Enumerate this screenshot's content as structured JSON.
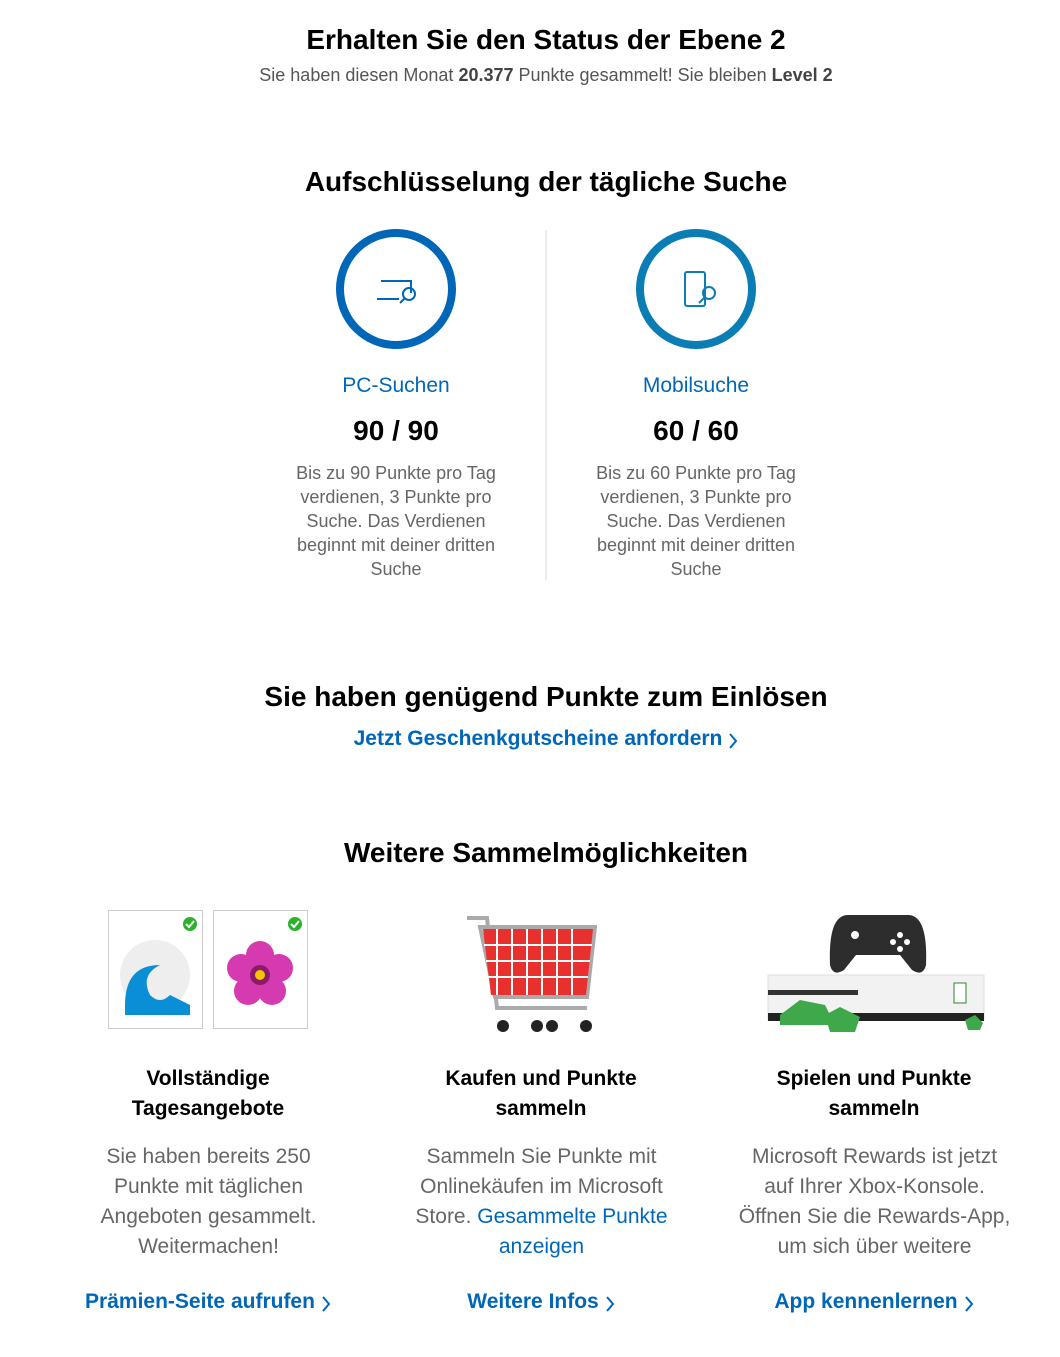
{
  "status": {
    "title": "Erhalten Sie den Status der Ebene 2",
    "subtitle": [
      "Sie haben diesen Monat ",
      "20.377",
      " Punkte gesammelt! Sie bleiben ",
      "Level 2"
    ]
  },
  "breakdown": {
    "title": "Aufschlüsselung der tägliche Suche",
    "cards": [
      {
        "label": "PC-Suchen",
        "progress": "90 / 90",
        "description": "Bis zu 90 Punkte pro Tag verdienen, 3 Punkte pro Suche. Das Verdienen beginnt mit deiner dritten Suche"
      },
      {
        "label": "Mobilsuche",
        "progress": "60 / 60",
        "description": "Bis zu 60 Punkte pro Tag verdienen, 3 Punkte pro Suche. Das Verdienen beginnt mit deiner dritten Suche"
      }
    ]
  },
  "redeem": {
    "title": "Sie haben genügend Punkte zum Einlösen",
    "link": "Jetzt Geschenkgutscheine anfordern"
  },
  "more": {
    "title": "Weitere Sammelmöglichkeiten",
    "items": [
      {
        "title": "Vollständige Tagesangebote",
        "description": "Sie haben bereits 250 Punkte mit täglichen Angeboten gesammelt. Weitermachen!",
        "link": "Prämien-Seite aufrufen"
      },
      {
        "title": "Kaufen und Punkte sammeln",
        "description": "Sammeln Sie Punkte mit Onlinekäufen im Microsoft Store.",
        "description_link": "Gesammelte Punkte anzeigen",
        "link": "Weitere Infos"
      },
      {
        "title": "Spielen und Punkte sammeln",
        "description": "Microsoft Rewards ist jetzt auf Ihrer Xbox-Konsole. Öffnen Sie die Rewards-App, um sich über weitere",
        "link": "App kennenlernen"
      }
    ]
  }
}
